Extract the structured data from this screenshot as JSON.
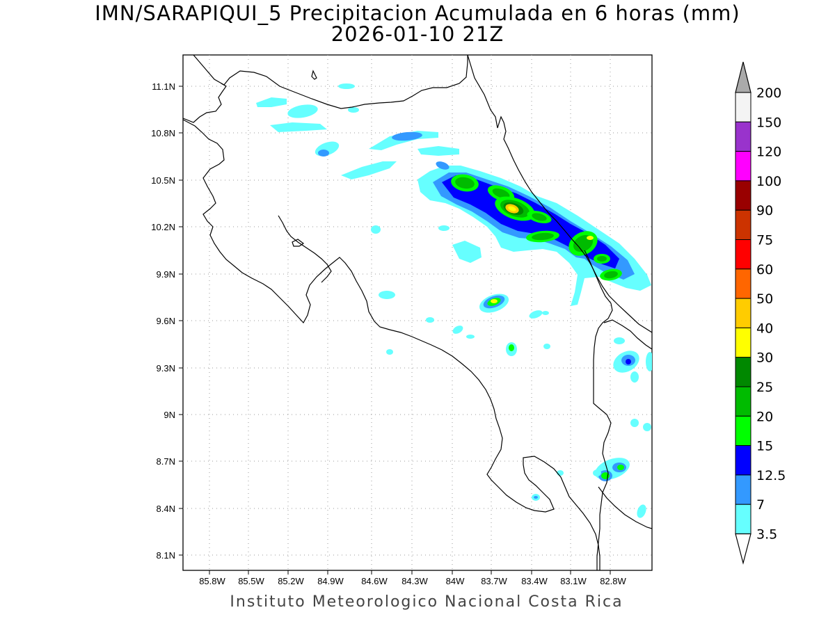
{
  "header": {
    "title_line1": "IMN/SARAPIQUI_5 Precipitacion Acumulada en 6 horas (mm)",
    "title_line2": "2026-01-10 21Z"
  },
  "footer": {
    "text": "Instituto Meteorologico Nacional Costa Rica"
  },
  "axes": {
    "lon_labels": [
      "85.8W",
      "85.5W",
      "85.2W",
      "84.9W",
      "84.6W",
      "84.3W",
      "84W",
      "83.7W",
      "83.4W",
      "83.1W",
      "82.8W"
    ],
    "lat_labels": [
      "11.1N",
      "10.8N",
      "10.5N",
      "10.2N",
      "9.9N",
      "9.6N",
      "9.3N",
      "9N",
      "8.7N",
      "8.4N",
      "8.1N"
    ]
  },
  "colorbar": {
    "labels": [
      "200",
      "150",
      "120",
      "100",
      "90",
      "75",
      "60",
      "50",
      "40",
      "30",
      "25",
      "20",
      "15",
      "12.5",
      "7",
      "3.5"
    ],
    "colors": [
      "#f4f4f4",
      "#9933cc",
      "#ff00ff",
      "#990000",
      "#cc3300",
      "#ff0000",
      "#ff6600",
      "#ffcc00",
      "#ffff00",
      "#008800",
      "#00bb00",
      "#00ff00",
      "#0000ff",
      "#3399ff",
      "#66ffff"
    ],
    "top_color": "#aaaaaa",
    "bottom_color": "#ffffff"
  },
  "precip_colors": {
    "c3": "#66ffff",
    "c7": "#3399ff",
    "c12": "#0000ff",
    "c15": "#00ff00",
    "c20": "#00bb00",
    "c25": "#008800",
    "c30": "#ffff00",
    "c40": "#ffcc00"
  }
}
